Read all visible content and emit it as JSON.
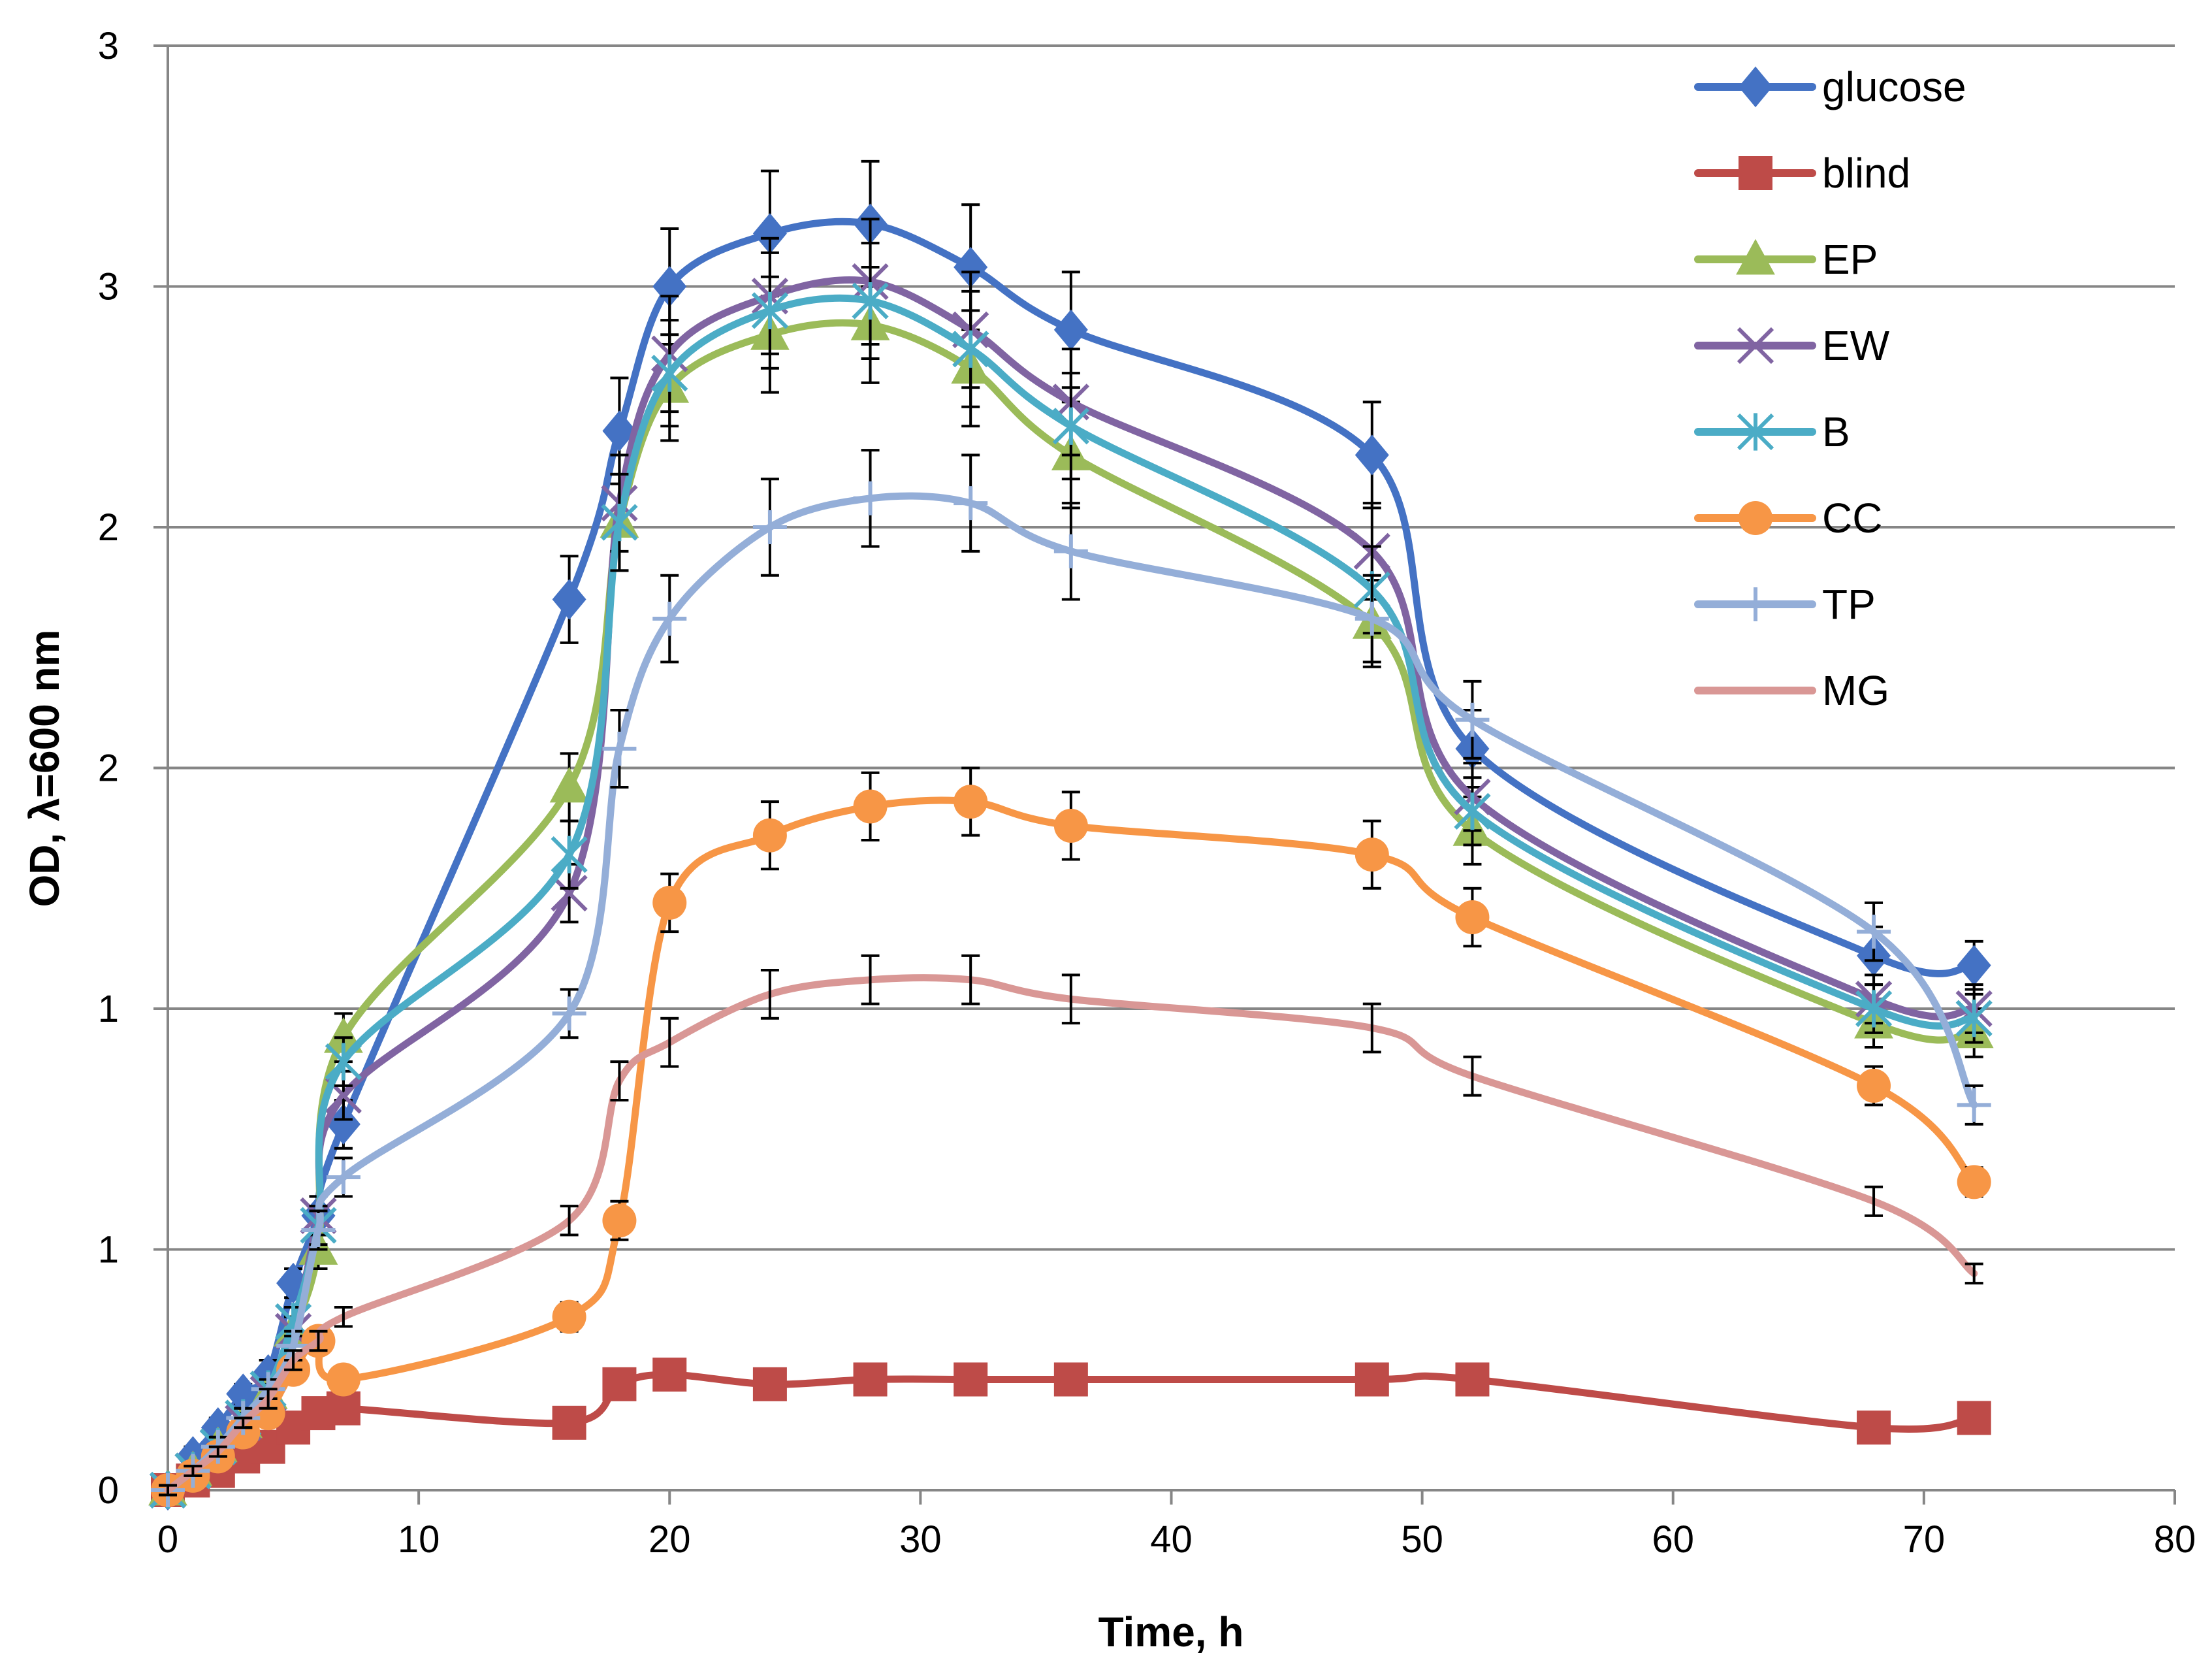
{
  "chart_data": {
    "type": "line",
    "title": "",
    "xlabel": "Time, h",
    "ylabel": "OD, λ=600 nm",
    "xlim": [
      0,
      80
    ],
    "ylim": [
      0,
      3
    ],
    "x_ticks": [
      "0",
      "10",
      "20",
      "30",
      "40",
      "50",
      "60",
      "70",
      "80"
    ],
    "y_ticks": [
      "0",
      "1",
      "1",
      "2",
      "2",
      "3",
      "3"
    ],
    "grid": "horizontal",
    "legend_position": "top-right",
    "series": [
      {
        "name": "glucose",
        "color": "#4472C4",
        "marker": "diamond",
        "x": [
          0,
          1,
          2,
          3,
          4,
          5,
          6,
          7,
          16,
          18,
          20,
          24,
          28,
          32,
          36,
          48,
          52,
          68,
          72
        ],
        "y": [
          0.0,
          0.07,
          0.13,
          0.2,
          0.24,
          0.43,
          0.57,
          0.76,
          1.85,
          2.2,
          2.5,
          2.61,
          2.63,
          2.54,
          2.41,
          2.15,
          1.54,
          1.11,
          1.09
        ],
        "err": [
          0.01,
          0.02,
          0.02,
          0.02,
          0.03,
          0.03,
          0.04,
          0.05,
          0.09,
          0.11,
          0.12,
          0.13,
          0.13,
          0.13,
          0.12,
          0.11,
          0.08,
          0.06,
          0.05
        ]
      },
      {
        "name": "blind",
        "color": "#BE4B48",
        "marker": "square",
        "x": [
          0,
          1,
          2,
          3,
          4,
          5,
          6,
          7,
          16,
          18,
          20,
          24,
          28,
          32,
          36,
          48,
          52,
          68,
          72
        ],
        "y": [
          0.0,
          0.02,
          0.04,
          0.07,
          0.09,
          0.13,
          0.16,
          0.17,
          0.14,
          0.22,
          0.24,
          0.22,
          0.23,
          0.23,
          0.23,
          0.23,
          0.23,
          0.13,
          0.15
        ],
        "err": [
          0.0,
          0.0,
          0.01,
          0.01,
          0.01,
          0.01,
          0.01,
          0.01,
          0.01,
          0.01,
          0.01,
          0.01,
          0.01,
          0.01,
          0.01,
          0.01,
          0.01,
          0.01,
          0.01
        ]
      },
      {
        "name": "EP",
        "color": "#9BBB59",
        "marker": "triangle",
        "x": [
          0,
          1,
          2,
          3,
          4,
          5,
          6,
          7,
          16,
          18,
          20,
          24,
          28,
          32,
          36,
          48,
          52,
          68,
          72
        ],
        "y": [
          0.0,
          0.04,
          0.09,
          0.14,
          0.2,
          0.33,
          0.5,
          0.94,
          1.46,
          2.01,
          2.29,
          2.4,
          2.42,
          2.33,
          2.15,
          1.8,
          1.37,
          0.97,
          0.95
        ],
        "err": [
          0.01,
          0.01,
          0.02,
          0.02,
          0.02,
          0.03,
          0.04,
          0.05,
          0.07,
          0.1,
          0.11,
          0.12,
          0.12,
          0.12,
          0.11,
          0.09,
          0.07,
          0.05,
          0.05
        ]
      },
      {
        "name": "EW",
        "color": "#8064A2",
        "marker": "x",
        "x": [
          0,
          1,
          2,
          3,
          4,
          5,
          6,
          7,
          16,
          18,
          20,
          24,
          28,
          32,
          36,
          48,
          52,
          68,
          72
        ],
        "y": [
          0.0,
          0.04,
          0.09,
          0.14,
          0.2,
          0.33,
          0.57,
          0.82,
          1.24,
          2.05,
          2.36,
          2.48,
          2.51,
          2.41,
          2.26,
          1.95,
          1.44,
          1.02,
          1.0
        ],
        "err": [
          0.01,
          0.01,
          0.02,
          0.02,
          0.02,
          0.03,
          0.04,
          0.05,
          0.06,
          0.1,
          0.12,
          0.12,
          0.13,
          0.12,
          0.11,
          0.1,
          0.07,
          0.05,
          0.05
        ]
      },
      {
        "name": "B",
        "color": "#4BACC6",
        "marker": "asterisk",
        "x": [
          0,
          1,
          2,
          3,
          4,
          5,
          6,
          7,
          16,
          18,
          20,
          24,
          28,
          32,
          36,
          48,
          52,
          68,
          72
        ],
        "y": [
          0.0,
          0.04,
          0.09,
          0.15,
          0.21,
          0.35,
          0.55,
          0.89,
          1.32,
          2.01,
          2.32,
          2.45,
          2.47,
          2.37,
          2.21,
          1.87,
          1.41,
          1.0,
          0.98
        ],
        "err": [
          0.01,
          0.01,
          0.02,
          0.02,
          0.02,
          0.03,
          0.04,
          0.05,
          0.07,
          0.1,
          0.11,
          0.12,
          0.12,
          0.12,
          0.11,
          0.09,
          0.07,
          0.05,
          0.05
        ]
      },
      {
        "name": "CC",
        "color": "#F79646",
        "marker": "circle",
        "x": [
          0,
          1,
          2,
          3,
          4,
          5,
          6,
          7,
          16,
          18,
          20,
          24,
          28,
          32,
          36,
          48,
          52,
          68,
          72
        ],
        "y": [
          0.0,
          0.03,
          0.07,
          0.12,
          0.16,
          0.25,
          0.31,
          0.23,
          0.36,
          0.56,
          1.22,
          1.36,
          1.42,
          1.43,
          1.38,
          1.32,
          1.19,
          0.84,
          0.64
        ],
        "err": [
          0.01,
          0.01,
          0.01,
          0.01,
          0.02,
          0.02,
          0.02,
          0.02,
          0.03,
          0.04,
          0.06,
          0.07,
          0.07,
          0.07,
          0.07,
          0.07,
          0.06,
          0.04,
          0.03
        ]
      },
      {
        "name": "TP",
        "color": "#94AED8",
        "marker": "plus",
        "x": [
          0,
          1,
          2,
          3,
          4,
          5,
          6,
          7,
          16,
          18,
          20,
          24,
          28,
          32,
          36,
          48,
          52,
          68,
          72
        ],
        "y": [
          0.0,
          0.04,
          0.09,
          0.15,
          0.21,
          0.3,
          0.54,
          0.65,
          0.99,
          1.54,
          1.81,
          2.0,
          2.06,
          2.05,
          1.95,
          1.81,
          1.6,
          1.16,
          0.8
        ],
        "err": [
          0.01,
          0.01,
          0.02,
          0.02,
          0.02,
          0.03,
          0.04,
          0.04,
          0.05,
          0.08,
          0.09,
          0.1,
          0.1,
          0.1,
          0.1,
          0.09,
          0.08,
          0.06,
          0.04
        ]
      },
      {
        "name": "MG",
        "color": "#D99795",
        "marker": "none",
        "x": [
          0,
          1,
          2,
          3,
          4,
          5,
          6,
          7,
          16,
          18,
          20,
          24,
          28,
          32,
          36,
          48,
          52,
          68,
          72
        ],
        "y": [
          0.0,
          0.04,
          0.08,
          0.14,
          0.19,
          0.27,
          0.31,
          0.36,
          0.56,
          0.85,
          0.93,
          1.03,
          1.06,
          1.06,
          1.02,
          0.96,
          0.86,
          0.6,
          0.45
        ],
        "err": [
          0.01,
          0.01,
          0.01,
          0.01,
          0.02,
          0.02,
          0.02,
          0.02,
          0.03,
          0.04,
          0.05,
          0.05,
          0.05,
          0.05,
          0.05,
          0.05,
          0.04,
          0.03,
          0.02
        ]
      }
    ]
  }
}
